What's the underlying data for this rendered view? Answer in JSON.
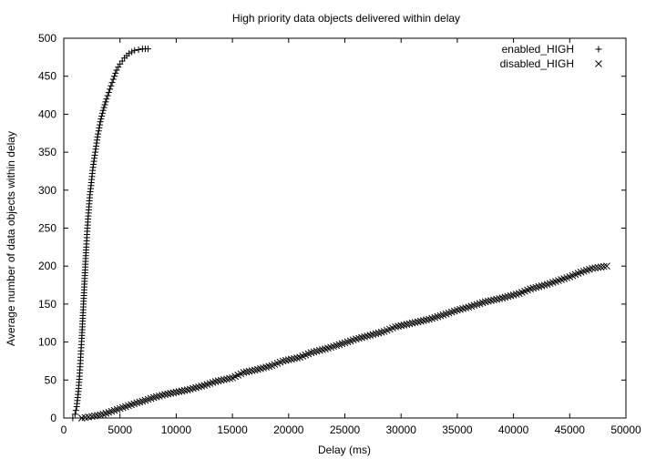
{
  "chart_data": {
    "type": "scatter",
    "title": "High priority data objects delivered within delay",
    "xlabel": "Delay (ms)",
    "ylabel": "Average number of data objects within delay",
    "xlim": [
      0,
      50000
    ],
    "ylim": [
      0,
      500
    ],
    "x_ticks": [
      "0",
      "5000",
      "10000",
      "15000",
      "20000",
      "25000",
      "30000",
      "35000",
      "40000",
      "45000",
      "50000"
    ],
    "y_ticks": [
      "0",
      "50",
      "100",
      "150",
      "200",
      "250",
      "300",
      "350",
      "400",
      "450",
      "500"
    ],
    "grid": false,
    "legend_position": "top-right",
    "series": [
      {
        "name": "enabled_HIGH",
        "marker": "plus",
        "color": "#000000",
        "points": [
          [
            800,
            0
          ],
          [
            1000,
            5
          ],
          [
            1150,
            15
          ],
          [
            1300,
            35
          ],
          [
            1400,
            55
          ],
          [
            1500,
            80
          ],
          [
            1600,
            105
          ],
          [
            1700,
            135
          ],
          [
            1800,
            165
          ],
          [
            1900,
            195
          ],
          [
            2000,
            225
          ],
          [
            2100,
            250
          ],
          [
            2200,
            270
          ],
          [
            2300,
            290
          ],
          [
            2450,
            310
          ],
          [
            2600,
            330
          ],
          [
            2800,
            350
          ],
          [
            3000,
            370
          ],
          [
            3250,
            390
          ],
          [
            3500,
            405
          ],
          [
            3800,
            420
          ],
          [
            4100,
            433
          ],
          [
            4400,
            446
          ],
          [
            4700,
            458
          ],
          [
            5000,
            466
          ],
          [
            5400,
            474
          ],
          [
            5800,
            480
          ],
          [
            6300,
            484
          ],
          [
            7000,
            486
          ],
          [
            7500,
            486
          ]
        ]
      },
      {
        "name": "disabled_HIGH",
        "marker": "cross",
        "color": "#000000",
        "points": [
          [
            1600,
            0
          ],
          [
            2500,
            2
          ],
          [
            3500,
            5
          ],
          [
            4500,
            10
          ],
          [
            5500,
            15
          ],
          [
            6500,
            20
          ],
          [
            7000,
            22
          ],
          [
            8000,
            27
          ],
          [
            9000,
            31
          ],
          [
            10000,
            34
          ],
          [
            11000,
            37
          ],
          [
            12500,
            43
          ],
          [
            13500,
            48
          ],
          [
            15000,
            53
          ],
          [
            16000,
            60
          ],
          [
            17000,
            63
          ],
          [
            18500,
            69
          ],
          [
            19500,
            75
          ],
          [
            21000,
            80
          ],
          [
            22000,
            86
          ],
          [
            23500,
            92
          ],
          [
            25000,
            99
          ],
          [
            26000,
            104
          ],
          [
            27000,
            108
          ],
          [
            28500,
            114
          ],
          [
            29500,
            120
          ],
          [
            31000,
            125
          ],
          [
            32500,
            130
          ],
          [
            34000,
            137
          ],
          [
            35000,
            142
          ],
          [
            36000,
            146
          ],
          [
            37500,
            153
          ],
          [
            39000,
            158
          ],
          [
            40500,
            164
          ],
          [
            41500,
            170
          ],
          [
            43000,
            176
          ],
          [
            44000,
            181
          ],
          [
            45000,
            186
          ],
          [
            46000,
            192
          ],
          [
            47000,
            197
          ],
          [
            48300,
            200
          ]
        ]
      }
    ]
  }
}
